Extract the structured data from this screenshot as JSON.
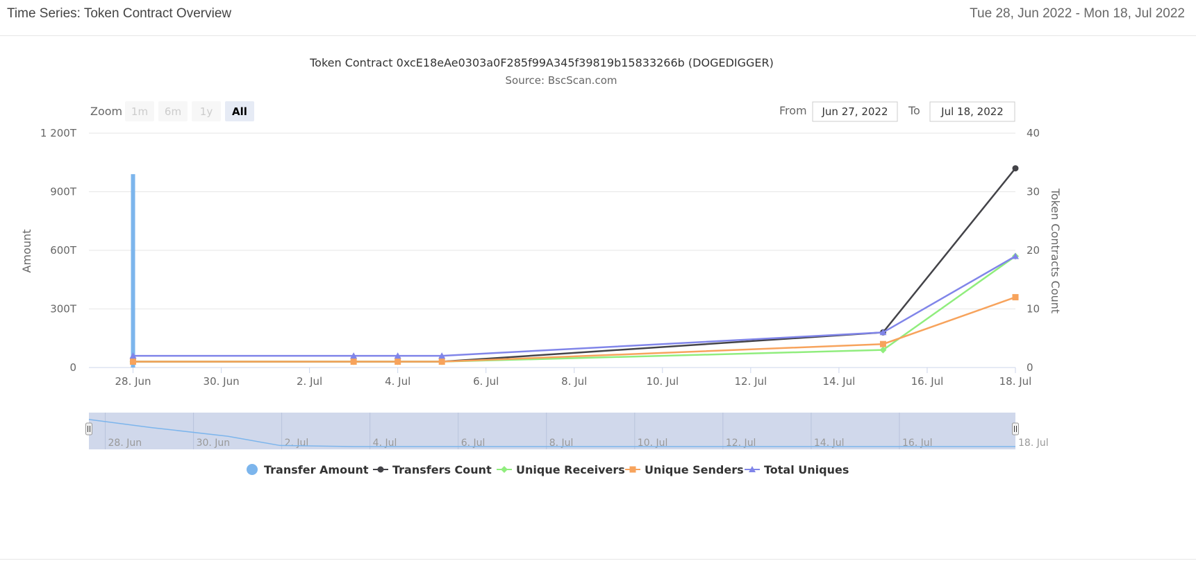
{
  "header": {
    "title": "Time Series: Token Contract Overview",
    "date_range": "Tue 28, Jun 2022 - Mon 18, Jul 2022"
  },
  "range_selector": {
    "zoom_label": "Zoom",
    "buttons": [
      "1m",
      "6m",
      "1y",
      "All"
    ],
    "active_button": "All",
    "from_label": "From",
    "from_value": "Jun 27, 2022",
    "to_label": "To",
    "to_value": "Jul 18, 2022"
  },
  "colors": {
    "transfer_amount": "#7cb5ec",
    "transfers_count": "#434348",
    "unique_receivers": "#90ed7d",
    "unique_senders": "#f7a35c",
    "total_uniques": "#8085e9",
    "navigator_fill": "#cdd6ea",
    "grid": "#e6e6e6"
  },
  "chart_data": {
    "type": "line",
    "title": "Token Contract 0xcE18eAe0303a0F285f99A345f39819b15833266b (DOGEDIGGER)",
    "subtitle": "Source: BscScan.com",
    "ylabel": "Amount",
    "ylabel_right": "Token Contracts Count",
    "x_range": [
      "2022-06-27",
      "2022-07-18"
    ],
    "x_ticks": [
      "28. Jun",
      "30. Jun",
      "2. Jul",
      "4. Jul",
      "6. Jul",
      "8. Jul",
      "10. Jul",
      "12. Jul",
      "14. Jul",
      "16. Jul",
      "18. Jul"
    ],
    "y_left": {
      "ticks": [
        "0",
        "300T",
        "600T",
        "900T",
        "1 200T"
      ],
      "range": [
        0,
        1200
      ]
    },
    "y_right": {
      "ticks": [
        "0",
        "10",
        "20",
        "30",
        "40"
      ],
      "range": [
        0,
        40
      ]
    },
    "navigator_ticks": [
      "28. Jun",
      "30. Jun",
      "2. Jul",
      "4. Jul",
      "6. Jul",
      "8. Jul",
      "10. Jul",
      "12. Jul",
      "14. Jul",
      "16. Jul",
      "18. Jul"
    ],
    "series": [
      {
        "name": "Transfer Amount",
        "key": "transfer_amount",
        "type": "column",
        "axis": "left",
        "unit": "T",
        "points": [
          [
            "2022-06-28",
            990
          ],
          [
            "2022-07-03",
            0
          ],
          [
            "2022-07-04",
            0
          ],
          [
            "2022-07-05",
            0
          ],
          [
            "2022-07-15",
            0
          ],
          [
            "2022-07-18",
            0
          ]
        ]
      },
      {
        "name": "Transfers Count",
        "key": "transfers_count",
        "type": "line",
        "axis": "right",
        "marker": "circle",
        "points": [
          [
            "2022-06-28",
            1
          ],
          [
            "2022-07-03",
            1
          ],
          [
            "2022-07-04",
            1
          ],
          [
            "2022-07-05",
            1
          ],
          [
            "2022-07-15",
            6
          ],
          [
            "2022-07-18",
            34
          ]
        ]
      },
      {
        "name": "Unique Receivers",
        "key": "unique_receivers",
        "type": "line",
        "axis": "right",
        "marker": "diamond",
        "points": [
          [
            "2022-06-28",
            1
          ],
          [
            "2022-07-03",
            1
          ],
          [
            "2022-07-04",
            1
          ],
          [
            "2022-07-05",
            1
          ],
          [
            "2022-07-15",
            3
          ],
          [
            "2022-07-18",
            19
          ]
        ]
      },
      {
        "name": "Unique Senders",
        "key": "unique_senders",
        "type": "line",
        "axis": "right",
        "marker": "square",
        "points": [
          [
            "2022-06-28",
            1
          ],
          [
            "2022-07-03",
            1
          ],
          [
            "2022-07-04",
            1
          ],
          [
            "2022-07-05",
            1
          ],
          [
            "2022-07-15",
            4
          ],
          [
            "2022-07-18",
            12
          ]
        ]
      },
      {
        "name": "Total Uniques",
        "key": "total_uniques",
        "type": "line",
        "axis": "right",
        "marker": "triangle",
        "points": [
          [
            "2022-06-28",
            2
          ],
          [
            "2022-07-03",
            2
          ],
          [
            "2022-07-04",
            2
          ],
          [
            "2022-07-05",
            2
          ],
          [
            "2022-07-15",
            6
          ],
          [
            "2022-07-18",
            19
          ]
        ]
      }
    ],
    "legend": [
      "Transfer Amount",
      "Transfers Count",
      "Unique Receivers",
      "Unique Senders",
      "Total Uniques"
    ],
    "legend_position": "bottom-center",
    "grid": true
  }
}
